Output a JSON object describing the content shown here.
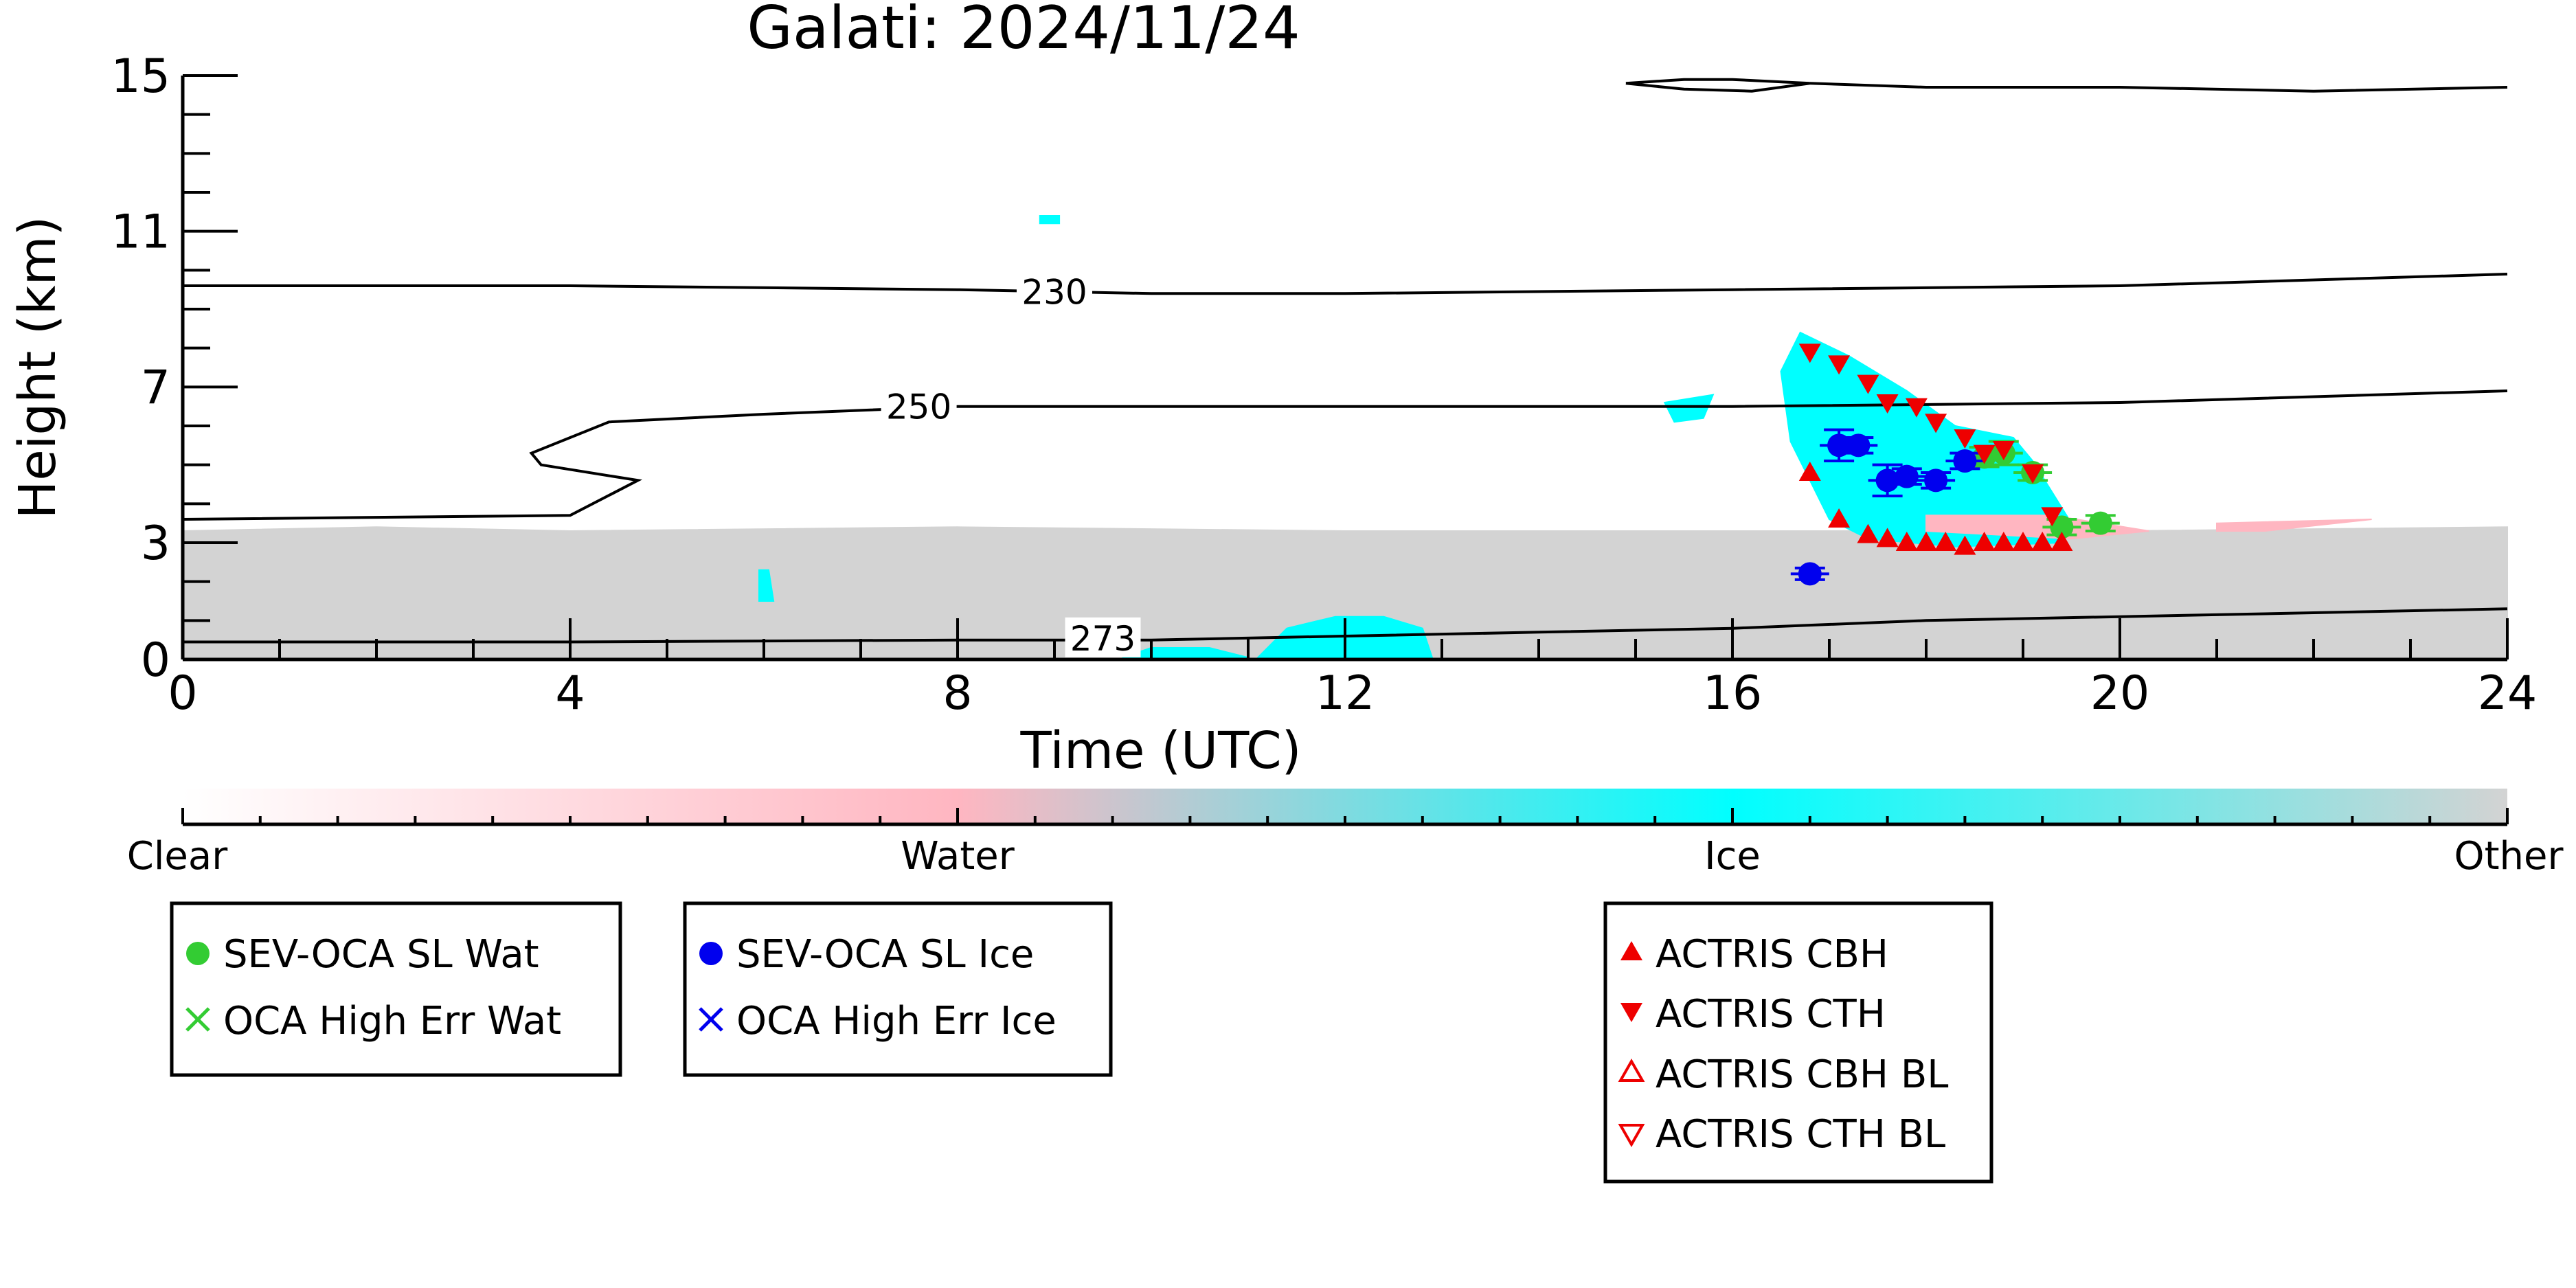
{
  "chart_data": {
    "type": "scatter",
    "title": "Galati: 2024/11/24",
    "xlabel": "Time (UTC)",
    "ylabel": "Height (km)",
    "xlim": [
      0,
      24
    ],
    "ylim": [
      0,
      15
    ],
    "x_ticks": [
      "0",
      "4",
      "8",
      "12",
      "16",
      "20",
      "24"
    ],
    "y_ticks": [
      "0",
      "3",
      "7",
      "11",
      "15"
    ],
    "colorbar": {
      "labels": [
        "Clear",
        "Water",
        "Ice",
        "Other"
      ],
      "colors": [
        "#ffffff",
        "#ffb6c1",
        "#00ffff",
        "#d3d3d3"
      ]
    },
    "contours": [
      {
        "label": "230",
        "points": [
          [
            0,
            9.6
          ],
          [
            4,
            9.6
          ],
          [
            8,
            9.5
          ],
          [
            10,
            9.4
          ],
          [
            12,
            9.4
          ],
          [
            16,
            9.5
          ],
          [
            20,
            9.6
          ],
          [
            24,
            9.9
          ]
        ]
      },
      {
        "label": "250",
        "points": [
          [
            0,
            3.6
          ],
          [
            4,
            3.7
          ],
          [
            4.7,
            4.6
          ],
          [
            3.7,
            5.0
          ],
          [
            3.6,
            5.3
          ],
          [
            4.4,
            6.1
          ],
          [
            6,
            6.3
          ],
          [
            8,
            6.5
          ],
          [
            10,
            6.5
          ],
          [
            12,
            6.5
          ],
          [
            16,
            6.5
          ],
          [
            20,
            6.6
          ],
          [
            24,
            6.9
          ]
        ]
      },
      {
        "label": "273",
        "points": [
          [
            0,
            0.45
          ],
          [
            4,
            0.45
          ],
          [
            8,
            0.5
          ],
          [
            10,
            0.5
          ],
          [
            12,
            0.6
          ],
          [
            14,
            0.7
          ],
          [
            16,
            0.8
          ],
          [
            18,
            1.0
          ],
          [
            20,
            1.1
          ],
          [
            22,
            1.2
          ],
          [
            24,
            1.3
          ]
        ]
      },
      {
        "label": "",
        "points": [
          [
            14.9,
            14.8
          ],
          [
            15.5,
            14.9
          ],
          [
            16,
            14.9
          ],
          [
            16.8,
            14.8
          ],
          [
            16.2,
            14.6
          ],
          [
            15.5,
            14.65
          ],
          [
            14.9,
            14.8
          ]
        ]
      },
      {
        "label": "",
        "points": [
          [
            16.8,
            14.8
          ],
          [
            18,
            14.7
          ],
          [
            20,
            14.7
          ],
          [
            22,
            14.6
          ],
          [
            24,
            14.7
          ]
        ]
      }
    ],
    "series": [
      {
        "name": "SEV-OCA SL Wat",
        "marker": "filled-circle",
        "color": "#33cc33",
        "points": [
          [
            18.6,
            5.2,
            0.25
          ],
          [
            18.8,
            5.3,
            0.3
          ],
          [
            19.1,
            4.8,
            0.2
          ],
          [
            19.4,
            3.4,
            0.2
          ],
          [
            19.8,
            3.5,
            0.2
          ]
        ]
      },
      {
        "name": "OCA High Err Wat",
        "marker": "x",
        "color": "#33cc33",
        "points": []
      },
      {
        "name": "SEV-OCA SL Ice",
        "marker": "filled-circle",
        "color": "#0000ee",
        "points": [
          [
            16.8,
            2.2,
            0.15
          ],
          [
            17.1,
            5.5,
            0.4
          ],
          [
            17.3,
            5.5,
            0.2
          ],
          [
            17.6,
            4.6,
            0.4
          ],
          [
            17.8,
            4.7,
            0.2
          ],
          [
            18.1,
            4.6,
            0.2
          ],
          [
            18.4,
            5.1,
            0.2
          ]
        ]
      },
      {
        "name": "OCA High Err Ice",
        "marker": "x",
        "color": "#0000ee",
        "points": []
      },
      {
        "name": "ACTRIS CBH",
        "marker": "triangle-up",
        "color": "#ee0000",
        "points": [
          [
            16.8,
            4.8
          ],
          [
            17.1,
            3.6
          ],
          [
            17.4,
            3.2
          ],
          [
            17.6,
            3.1
          ],
          [
            17.8,
            3.0
          ],
          [
            18.0,
            3.0
          ],
          [
            18.2,
            3.0
          ],
          [
            18.4,
            2.9
          ],
          [
            18.6,
            3.0
          ],
          [
            18.8,
            3.0
          ],
          [
            19.0,
            3.0
          ],
          [
            19.2,
            3.0
          ],
          [
            19.4,
            3.0
          ]
        ]
      },
      {
        "name": "ACTRIS CTH",
        "marker": "triangle-down",
        "color": "#ee0000",
        "points": [
          [
            16.8,
            7.9
          ],
          [
            17.1,
            7.6
          ],
          [
            17.4,
            7.1
          ],
          [
            17.6,
            6.6
          ],
          [
            17.9,
            6.5
          ],
          [
            18.1,
            6.1
          ],
          [
            18.4,
            5.7
          ],
          [
            18.6,
            5.3
          ],
          [
            18.8,
            5.4
          ],
          [
            19.1,
            4.8
          ],
          [
            19.3,
            3.7
          ]
        ]
      },
      {
        "name": "ACTRIS CBH BL",
        "marker": "triangle-up-open",
        "color": "#ee0000",
        "points": []
      },
      {
        "name": "ACTRIS CTH BL",
        "marker": "triangle-down-open",
        "color": "#ee0000",
        "points": []
      }
    ],
    "regions": [
      {
        "class": "Other",
        "color": "#d3d3d3",
        "polygon": [
          [
            0,
            0
          ],
          [
            24,
            0
          ],
          [
            24,
            3.4
          ],
          [
            20,
            3.3
          ],
          [
            16,
            3.3
          ],
          [
            12,
            3.3
          ],
          [
            8,
            3.4
          ],
          [
            4,
            3.3
          ],
          [
            2,
            3.4
          ],
          [
            0,
            3.3
          ]
        ]
      },
      {
        "class": "Ice",
        "color": "#00ffff",
        "polygon": [
          [
            16.7,
            8.4
          ],
          [
            17.2,
            7.8
          ],
          [
            17.8,
            6.9
          ],
          [
            18.3,
            6.0
          ],
          [
            18.9,
            5.7
          ],
          [
            19.1,
            5.1
          ],
          [
            19.5,
            3.5
          ],
          [
            19.4,
            3.0
          ],
          [
            18.3,
            2.9
          ],
          [
            17.4,
            3.1
          ],
          [
            17.0,
            3.6
          ],
          [
            16.8,
            4.6
          ],
          [
            16.6,
            5.6
          ],
          [
            16.5,
            7.4
          ]
        ]
      },
      {
        "class": "Ice",
        "color": "#00ffff",
        "polygon": [
          [
            15.3,
            6.6
          ],
          [
            15.8,
            6.8
          ],
          [
            15.7,
            6.2
          ],
          [
            15.4,
            6.1
          ]
        ]
      },
      {
        "class": "Ice",
        "color": "#00ffff",
        "polygon": [
          [
            11.1,
            0.05
          ],
          [
            12.9,
            0.05
          ],
          [
            12.8,
            0.8
          ],
          [
            12.4,
            1.1
          ],
          [
            11.9,
            1.1
          ],
          [
            11.4,
            0.8
          ]
        ]
      },
      {
        "class": "Ice",
        "color": "#00ffff",
        "polygon": [
          [
            9.7,
            0.05
          ],
          [
            11.0,
            0.05
          ],
          [
            10.6,
            0.3
          ],
          [
            10.0,
            0.3
          ]
        ]
      },
      {
        "class": "Water",
        "color": "#ffb6c1",
        "polygon": [
          [
            18.0,
            3.7
          ],
          [
            19.3,
            3.7
          ],
          [
            20.3,
            3.3
          ],
          [
            19.5,
            3.1
          ],
          [
            18.0,
            3.3
          ]
        ]
      },
      {
        "class": "Water",
        "color": "#ffb6c1",
        "polygon": [
          [
            21.0,
            3.5
          ],
          [
            22.6,
            3.6
          ],
          [
            21.5,
            3.3
          ],
          [
            21.0,
            3.3
          ]
        ]
      },
      {
        "class": "Ice",
        "color": "#00ffff",
        "polygon": [
          [
            5.95,
            1.5
          ],
          [
            6.1,
            1.5
          ],
          [
            6.05,
            2.3
          ],
          [
            5.95,
            2.3
          ]
        ]
      },
      {
        "class": "Ice",
        "color": "#00ffff",
        "polygon": [
          [
            8.85,
            11.2
          ],
          [
            9.05,
            11.2
          ],
          [
            9.05,
            11.4
          ],
          [
            8.85,
            11.4
          ]
        ]
      }
    ],
    "legend_placement": "below"
  }
}
